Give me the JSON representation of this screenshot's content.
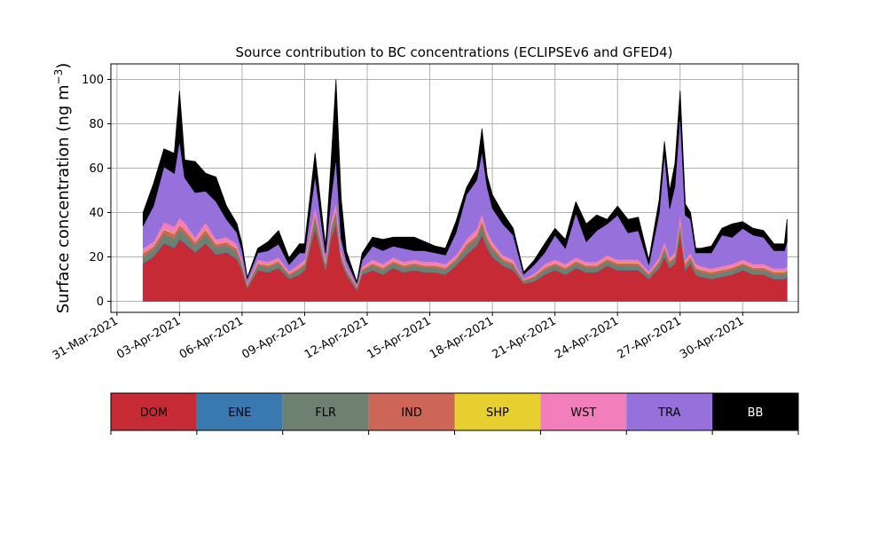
{
  "chart_data": {
    "type": "area",
    "stacked": true,
    "title": "Source contribution to BC concentrations (ECLIPSEv6 and GFED4)",
    "xlabel": "",
    "ylabel_text": "Surface concentration (ng m",
    "ylabel_exp": "−3",
    "ylabel_close": ")",
    "ylim": [
      -5,
      107
    ],
    "yticks": [
      0,
      20,
      40,
      60,
      80,
      100
    ],
    "xlim": [
      "2021-03-30T17:00",
      "2021-05-02T16:00"
    ],
    "xticks": [
      "2021-03-31",
      "2021-04-03",
      "2021-04-06",
      "2021-04-09",
      "2021-04-12",
      "2021-04-15",
      "2021-04-18",
      "2021-04-21",
      "2021-04-24",
      "2021-04-27",
      "2021-04-30"
    ],
    "xtick_labels": [
      "31-Mar-2021",
      "03-Apr-2021",
      "06-Apr-2021",
      "09-Apr-2021",
      "12-Apr-2021",
      "15-Apr-2021",
      "18-Apr-2021",
      "21-Apr-2021",
      "24-Apr-2021",
      "27-Apr-2021",
      "30-Apr-2021"
    ],
    "grid": true,
    "x": [
      "2021-04-01T06:00",
      "2021-04-01T18:00",
      "2021-04-02T06:00",
      "2021-04-02T18:00",
      "2021-04-03T00:00",
      "2021-04-03T06:00",
      "2021-04-03T18:00",
      "2021-04-04T06:00",
      "2021-04-04T18:00",
      "2021-04-05T06:00",
      "2021-04-05T18:00",
      "2021-04-06T00:00",
      "2021-04-06T06:00",
      "2021-04-06T18:00",
      "2021-04-07T06:00",
      "2021-04-07T18:00",
      "2021-04-08T06:00",
      "2021-04-08T18:00",
      "2021-04-09T00:00",
      "2021-04-09T12:00",
      "2021-04-10T00:00",
      "2021-04-10T06:00",
      "2021-04-10T12:00",
      "2021-04-10T18:00",
      "2021-04-11T00:00",
      "2021-04-11T12:00",
      "2021-04-11T18:00",
      "2021-04-12T06:00",
      "2021-04-12T18:00",
      "2021-04-13T06:00",
      "2021-04-13T18:00",
      "2021-04-14T06:00",
      "2021-04-14T18:00",
      "2021-04-15T06:00",
      "2021-04-15T18:00",
      "2021-04-16T06:00",
      "2021-04-16T18:00",
      "2021-04-17T06:00",
      "2021-04-17T12:00",
      "2021-04-17T18:00",
      "2021-04-18T00:00",
      "2021-04-18T12:00",
      "2021-04-19T00:00",
      "2021-04-19T12:00",
      "2021-04-20T00:00",
      "2021-04-20T12:00",
      "2021-04-21T00:00",
      "2021-04-21T12:00",
      "2021-04-22T00:00",
      "2021-04-22T12:00",
      "2021-04-23T00:00",
      "2021-04-23T12:00",
      "2021-04-24T00:00",
      "2021-04-24T12:00",
      "2021-04-25T00:00",
      "2021-04-25T12:00",
      "2021-04-26T00:00",
      "2021-04-26T06:00",
      "2021-04-26T12:00",
      "2021-04-26T18:00",
      "2021-04-27T00:00",
      "2021-04-27T06:00",
      "2021-04-27T12:00",
      "2021-04-27T18:00",
      "2021-04-28T00:00",
      "2021-04-28T12:00",
      "2021-04-29T00:00",
      "2021-04-29T12:00",
      "2021-04-30T00:00",
      "2021-04-30T12:00",
      "2021-05-01T00:00",
      "2021-05-01T12:00",
      "2021-05-02T00:00",
      "2021-05-02T03:00"
    ],
    "series": [
      {
        "name": "DOM",
        "color": "#c52a35",
        "values": [
          17,
          20,
          26,
          24,
          28,
          26,
          22,
          26,
          21,
          22,
          19,
          14,
          6,
          14,
          13,
          15,
          10,
          12,
          14,
          33,
          14,
          28,
          35,
          18,
          12,
          5,
          12,
          14,
          12,
          15,
          13,
          14,
          13,
          13,
          12,
          16,
          21,
          25,
          30,
          24,
          20,
          16,
          14,
          8,
          9,
          12,
          14,
          12,
          15,
          13,
          13,
          16,
          14,
          14,
          14,
          10,
          15,
          20,
          15,
          17,
          30,
          14,
          17,
          12,
          11,
          10,
          11,
          12,
          14,
          12,
          12,
          10,
          10,
          11
        ]
      },
      {
        "name": "ENE",
        "color": "#3a78b0",
        "values": [
          0.3,
          0.3,
          0.4,
          0.4,
          0.4,
          0.4,
          0.3,
          0.4,
          0.3,
          0.3,
          0.3,
          0.2,
          0.1,
          0.2,
          0.2,
          0.2,
          0.2,
          0.2,
          0.2,
          0.5,
          0.2,
          0.4,
          0.5,
          0.3,
          0.2,
          0.1,
          0.2,
          0.2,
          0.2,
          0.2,
          0.2,
          0.2,
          0.2,
          0.2,
          0.2,
          0.2,
          0.3,
          0.4,
          0.5,
          0.4,
          0.3,
          0.2,
          0.2,
          0.1,
          0.1,
          0.2,
          0.2,
          0.2,
          0.2,
          0.2,
          0.2,
          0.2,
          0.2,
          0.2,
          0.2,
          0.2,
          0.2,
          0.3,
          0.2,
          0.3,
          0.5,
          0.2,
          0.3,
          0.2,
          0.2,
          0.2,
          0.2,
          0.2,
          0.2,
          0.2,
          0.2,
          0.2,
          0.2,
          0.2
        ]
      },
      {
        "name": "FLR",
        "color": "#6e8170",
        "values": [
          3,
          3,
          4,
          4,
          4,
          4,
          3,
          4,
          3,
          3,
          3,
          2,
          1,
          2,
          2,
          2,
          1.5,
          2,
          2,
          4,
          2,
          3,
          4,
          2,
          1.5,
          1,
          1.5,
          2,
          2,
          2,
          2,
          2,
          2,
          2,
          2,
          2,
          3,
          3,
          4,
          3,
          3,
          2,
          2,
          1,
          1.5,
          2,
          2,
          2,
          2,
          2,
          2,
          2,
          2,
          2,
          2,
          1.5,
          2,
          3,
          2,
          2,
          4,
          2,
          2,
          2,
          2,
          2,
          2,
          2,
          2,
          2,
          2,
          2,
          2,
          2
        ]
      },
      {
        "name": "IND",
        "color": "#cd6656",
        "values": [
          1.5,
          1.5,
          2,
          2,
          2,
          2,
          1.5,
          2,
          1.5,
          1.5,
          1.5,
          1,
          0.5,
          1,
          1,
          1,
          0.8,
          1,
          1,
          2,
          1,
          1.5,
          2,
          1,
          0.8,
          0.5,
          0.8,
          1,
          1,
          1,
          1,
          1,
          1,
          1,
          1,
          1,
          1.5,
          1.5,
          2,
          1.5,
          1.5,
          1,
          1,
          0.5,
          0.8,
          1,
          1,
          1,
          1,
          1,
          1,
          1,
          1,
          1,
          1,
          0.8,
          1,
          1.5,
          1,
          1,
          2,
          1,
          1,
          1,
          1,
          1,
          1,
          1,
          1,
          1,
          1,
          1,
          1,
          1
        ]
      },
      {
        "name": "SHP",
        "color": "#e7cf30",
        "values": [
          0.2,
          0.2,
          0.3,
          0.3,
          0.3,
          0.3,
          0.2,
          0.3,
          0.2,
          0.2,
          0.2,
          0.2,
          0.1,
          0.2,
          0.2,
          0.2,
          0.1,
          0.2,
          0.2,
          0.3,
          0.2,
          0.3,
          0.3,
          0.2,
          0.1,
          0.1,
          0.1,
          0.2,
          0.2,
          0.2,
          0.2,
          0.2,
          0.2,
          0.2,
          0.2,
          0.2,
          0.2,
          0.3,
          0.3,
          0.3,
          0.2,
          0.2,
          0.2,
          0.1,
          0.1,
          0.2,
          0.2,
          0.2,
          0.2,
          0.2,
          0.2,
          0.2,
          0.2,
          0.2,
          0.2,
          0.1,
          0.2,
          0.2,
          0.2,
          0.2,
          0.3,
          0.2,
          0.2,
          0.2,
          0.2,
          0.2,
          0.2,
          0.2,
          0.2,
          0.2,
          0.2,
          0.2,
          0.2,
          0.2
        ]
      },
      {
        "name": "WST",
        "color": "#f27fbb",
        "values": [
          2,
          2,
          3,
          3,
          3,
          3,
          2,
          3,
          2,
          2,
          2,
          1.5,
          0.5,
          1.5,
          1.5,
          1.5,
          1,
          1.5,
          1.5,
          3,
          1.5,
          2.5,
          3,
          2,
          1,
          0.5,
          1,
          1.5,
          1.5,
          1.5,
          1.5,
          1.5,
          1.5,
          1.5,
          1.5,
          1.5,
          2,
          2.5,
          3,
          2.5,
          2,
          1.5,
          1.5,
          0.5,
          1,
          1.5,
          1.5,
          1.5,
          1.5,
          1.5,
          1.5,
          1.5,
          1.5,
          1.5,
          1.5,
          1,
          1.5,
          2,
          1.5,
          1.5,
          3,
          1.5,
          1.5,
          1.5,
          1.5,
          1.5,
          1.5,
          1.5,
          1.5,
          1.5,
          1.5,
          1.5,
          1.5,
          1.5
        ]
      },
      {
        "name": "TRA",
        "color": "#9671db",
        "values": [
          10,
          16,
          25,
          24,
          35,
          20,
          20,
          14,
          17,
          8,
          5,
          4,
          2,
          3,
          5,
          6,
          3,
          5,
          3,
          14,
          3,
          10,
          20,
          5,
          3,
          1,
          3,
          6,
          6,
          5,
          6,
          4,
          5,
          4,
          4,
          10,
          20,
          22,
          28,
          20,
          15,
          14,
          11,
          2,
          4,
          5,
          11,
          7,
          20,
          9,
          14,
          14,
          20,
          12,
          13,
          3,
          20,
          40,
          22,
          30,
          45,
          20,
          15,
          5,
          6,
          7,
          14,
          12,
          14,
          13,
          12,
          8,
          8,
          11
        ]
      },
      {
        "name": "BB",
        "color": "#000000",
        "values": [
          6,
          10,
          8,
          9,
          22,
          8,
          14,
          8,
          11,
          6,
          4,
          3,
          0.5,
          2,
          4,
          6,
          3,
          4,
          4,
          10,
          3,
          15,
          35,
          18,
          4,
          0.5,
          3,
          4,
          5,
          4,
          5,
          6,
          4,
          3,
          3,
          5,
          3,
          5,
          10,
          5,
          6,
          5,
          3,
          1,
          2,
          4,
          3,
          4,
          5,
          8,
          7,
          2,
          4,
          6,
          6,
          2,
          6,
          5,
          8,
          10,
          10,
          5,
          3,
          2,
          2,
          3,
          3,
          6,
          3,
          3,
          3,
          3,
          3,
          10
        ]
      }
    ],
    "legend": {
      "placement": "below",
      "labels": [
        "DOM",
        "ENE",
        "FLR",
        "IND",
        "SHP",
        "WST",
        "TRA",
        "BB"
      ],
      "colors": [
        "#c52a35",
        "#3a78b0",
        "#6e8170",
        "#cd6656",
        "#e7cf30",
        "#f27fbb",
        "#9671db",
        "#000000"
      ],
      "text_colors": [
        "#000000",
        "#000000",
        "#000000",
        "#000000",
        "#000000",
        "#000000",
        "#000000",
        "#ffffff"
      ]
    }
  }
}
